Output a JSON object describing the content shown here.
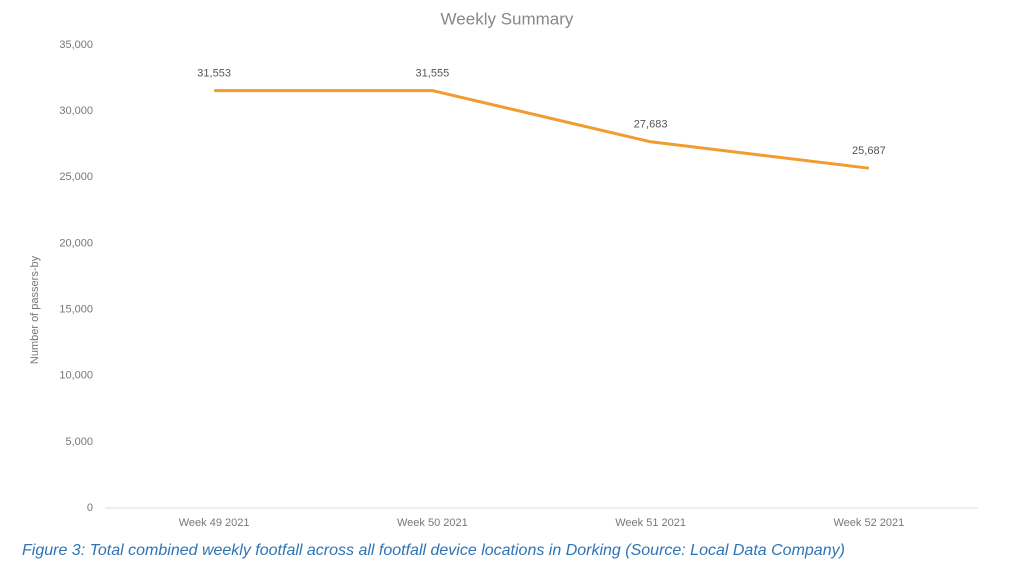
{
  "chart_data": {
    "type": "line",
    "title": "Weekly Summary",
    "y_label": "Number of passers-by",
    "categories": [
      "Week 49 2021",
      "Week 50 2021",
      "Week 51 2021",
      "Week 52 2021"
    ],
    "values": [
      31553,
      31555,
      27683,
      25687
    ],
    "value_labels": [
      "31,553",
      "31,555",
      "27,683",
      "25,687"
    ],
    "color": "#f29b30",
    "ylim": [
      0,
      35000
    ],
    "yticks": [
      0,
      {
        "value": 5000,
        "label": "5,000"
      },
      {
        "value": 10000,
        "label": "10,000"
      },
      {
        "value": 15000,
        "label": "15,000"
      },
      {
        "value": 20000,
        "label": "20,000"
      },
      {
        "value": 25000,
        "label": "25,000"
      },
      {
        "value": 30000,
        "label": "30,000"
      },
      {
        "value": 35000,
        "label": "35,000"
      }
    ]
  },
  "caption": "Figure 3: Total combined weekly footfall across all footfall device locations in Dorking (Source: Local Data Company)"
}
